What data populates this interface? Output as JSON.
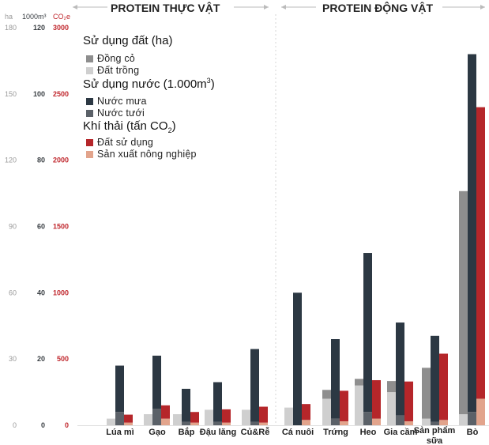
{
  "colors": {
    "pasture": "#8e8e8e",
    "arable": "#cfcfcf",
    "rain": "#2c3843",
    "irrigation": "#5b6168",
    "land_use": "#b5262a",
    "farming": "#e2a48c",
    "ha_axis": "#999999",
    "water_axis": "#3a3f44",
    "co2_axis": "#c0272d"
  },
  "sections": {
    "plant": "PROTEIN THỰC VẬT",
    "animal": "PROTEIN ĐỘNG VẬT"
  },
  "legend": {
    "land_title": "Sử dụng đất (ha)",
    "pasture": "Đồng cỏ",
    "arable": "Đất trồng",
    "water_title_pre": "Sử dụng nước (1.000m",
    "water_title_sup": "3",
    "water_title_post": ")",
    "rain": "Nước mưa",
    "irrigation": "Nước tưới",
    "emission_title_pre": "Khí thải (tấn CO",
    "emission_title_sub": "2",
    "emission_title_post": ")",
    "land_use": "Đất sử dụng",
    "farming": "Sản xuất nông nghiệp"
  },
  "chart_data": {
    "type": "bar",
    "axes": {
      "ha": {
        "header": "ha",
        "ticks": [
          0,
          30,
          60,
          90,
          120,
          150,
          180
        ]
      },
      "water": {
        "header": "1000m³",
        "ticks": [
          0,
          20,
          40,
          60,
          80,
          100,
          120
        ]
      },
      "co2": {
        "header": "CO₂e",
        "ticks": [
          0,
          500,
          1000,
          1500,
          2000,
          2500,
          3000
        ]
      }
    },
    "categories": [
      "Lúa mì",
      "Gạo",
      "Bắp",
      "Đậu lăng",
      "Củ&Rễ",
      "Cá nuôi",
      "Trứng",
      "Heo",
      "Gia cầm",
      "Sản phẩm sữa",
      "Bò"
    ],
    "land_ha": {
      "pasture": [
        0,
        0,
        0,
        0,
        0,
        0,
        4,
        3,
        5,
        23,
        101
      ],
      "arable": [
        3,
        5,
        5,
        7,
        7,
        8,
        12,
        18,
        15,
        3,
        5
      ]
    },
    "water_1000m3": {
      "rain": [
        14,
        16,
        10,
        12,
        22,
        40,
        24,
        48,
        28,
        26,
        108
      ],
      "irrigation": [
        4,
        5,
        1,
        1,
        1,
        0,
        2,
        4,
        3,
        1,
        4
      ]
    },
    "emissions_tCO2e": {
      "land_use": [
        60,
        100,
        80,
        100,
        120,
        120,
        230,
        290,
        300,
        500,
        2200
      ],
      "farming": [
        20,
        50,
        20,
        20,
        20,
        40,
        30,
        50,
        30,
        40,
        200
      ]
    }
  }
}
